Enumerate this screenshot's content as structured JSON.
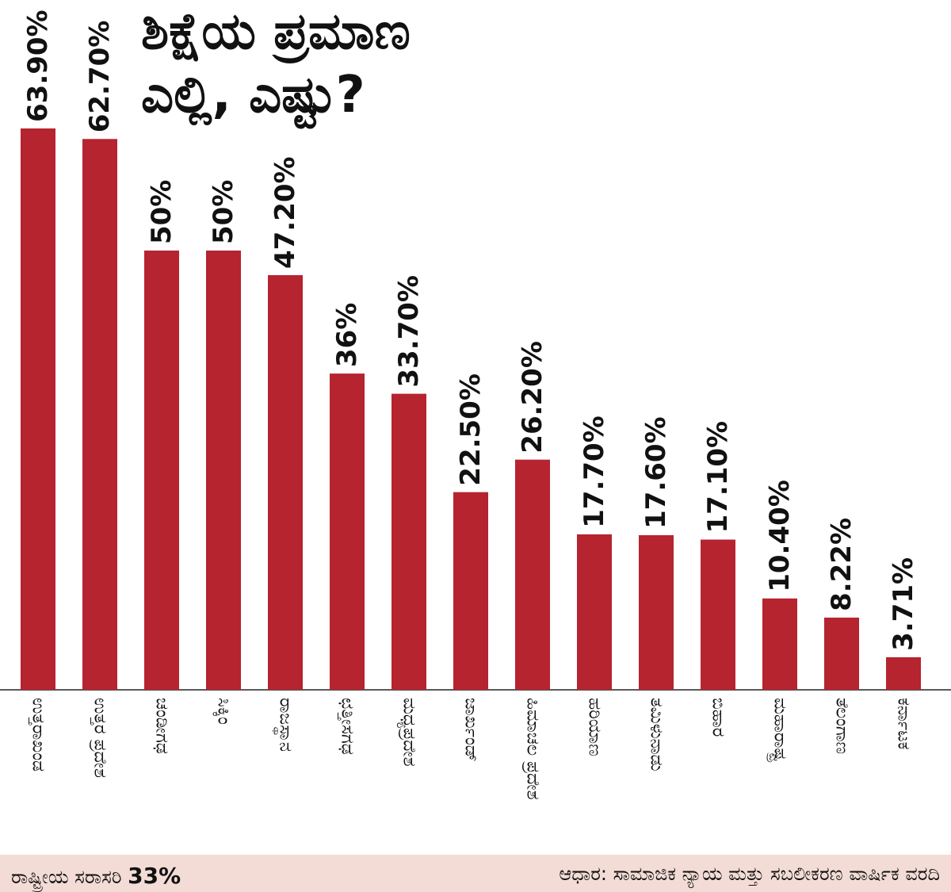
{
  "header": {
    "title_line1": "ಶಿಕ್ಷೆಯ ಪ್ರಮಾಣ",
    "title_line2": "ಎಲ್ಲಿ, ಎಷ್ಟು?"
  },
  "footer": {
    "average_label": "ರಾಷ್ಟ್ರೀಯ ಸರಾಸರಿ",
    "average_value": "33%",
    "source": "ಆಧಾರ: ಸಾಮಾಜಿಕ ನ್ಯಾಯ ಮತ್ತು ಸಬಲೀಕರಣ ವಾರ್ಷಿಕ ವರದಿ"
  },
  "colors": {
    "bar": "#b5242f",
    "footer_bg": "#f3dcd5",
    "text": "#111111"
  },
  "chart_data": {
    "type": "bar",
    "categories": [
      "ಉತ್ತರಾಖಂಡ",
      "ಉತ್ತರ ಪ್ರದೇಶ",
      "ಚಂಡೀಗಢ",
      "ಸಿಕ್ಕಿಂ",
      "ರಾಜಸ್ಥಾನ",
      "ಛತ್ತೀಸಗಢ",
      "ಮಧ್ಯಪ್ರದೇಶ",
      "ಜಾರ್ಖಂಡ್",
      "ಹಿಮಾಚಲ ಪ್ರದೇಶ",
      "ಹರಿಯಾಣ",
      "ತಮಿಳುನಾಡು",
      "ಬಿಹಾರ",
      "ಮಹಾರಾಷ್ಟ್ರ",
      "ತೆಲಂಗಾಣ",
      "ಕರ್ನಾಟಕ"
    ],
    "values": [
      63.9,
      62.7,
      50,
      50,
      47.2,
      36,
      33.7,
      22.5,
      26.2,
      17.7,
      17.6,
      17.1,
      10.4,
      8.22,
      3.71
    ],
    "value_labels": [
      "63.90%",
      "62.70%",
      "50%",
      "50%",
      "47.20%",
      "36%",
      "33.70%",
      "22.50%",
      "26.20%",
      "17.70%",
      "17.60%",
      "17.10%",
      "10.40%",
      "8.22%",
      "3.71%"
    ],
    "ylim": [
      0,
      63.9
    ],
    "grid": false,
    "legend": "none"
  }
}
